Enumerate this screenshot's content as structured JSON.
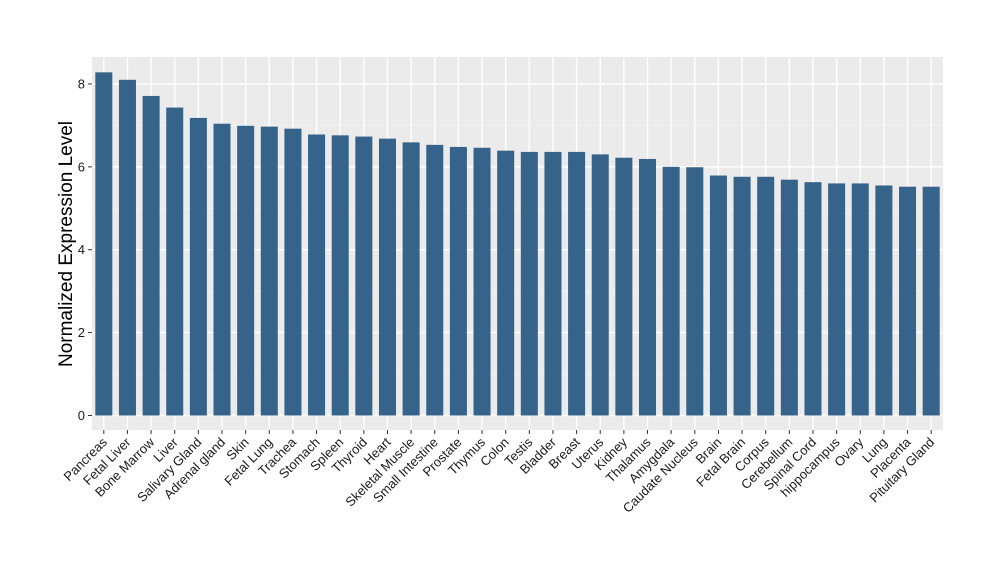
{
  "chart_data": {
    "type": "bar",
    "title": "",
    "xlabel": "",
    "ylabel": "Normalized Expression Level",
    "ylim": [
      -0.35,
      8.65
    ],
    "yticks": [
      0,
      2,
      4,
      6,
      8
    ],
    "grid": true,
    "colors": {
      "bar": "#35638a",
      "panel": "#ebebeb",
      "grid_major": "#ffffff",
      "grid_minor": "#f5f5f5",
      "tick": "#333333"
    },
    "categories": [
      "Pancreas",
      "Fetal Liver",
      "Bone Marrow",
      "Liver",
      "Salivary Gland",
      "Adrenal gland",
      "Skin",
      "Fetal Lung",
      "Trachea",
      "Stomach",
      "Spleen",
      "Thyroid",
      "Heart",
      "Skeletal Muscle",
      "Small Intestine",
      "Prostate",
      "Thymus",
      "Colon",
      "Testis",
      "Bladder",
      "Breast",
      "Uterus",
      "Kidney",
      "Thalamus",
      "Amygdala",
      "Caudate Nucleus",
      "Brain",
      "Fetal Brain",
      "Corpus",
      "Cerebellum",
      "Spinal Cord",
      "hippocampus",
      "Ovary",
      "Lung",
      "Placenta",
      "Pituitary Gland"
    ],
    "values": [
      8.28,
      8.1,
      7.71,
      7.43,
      7.18,
      7.04,
      6.99,
      6.97,
      6.92,
      6.78,
      6.76,
      6.73,
      6.68,
      6.59,
      6.53,
      6.48,
      6.46,
      6.39,
      6.36,
      6.36,
      6.36,
      6.3,
      6.22,
      6.19,
      6.0,
      5.99,
      5.79,
      5.76,
      5.76,
      5.69,
      5.63,
      5.6,
      5.6,
      5.55,
      5.52,
      5.52
    ]
  }
}
